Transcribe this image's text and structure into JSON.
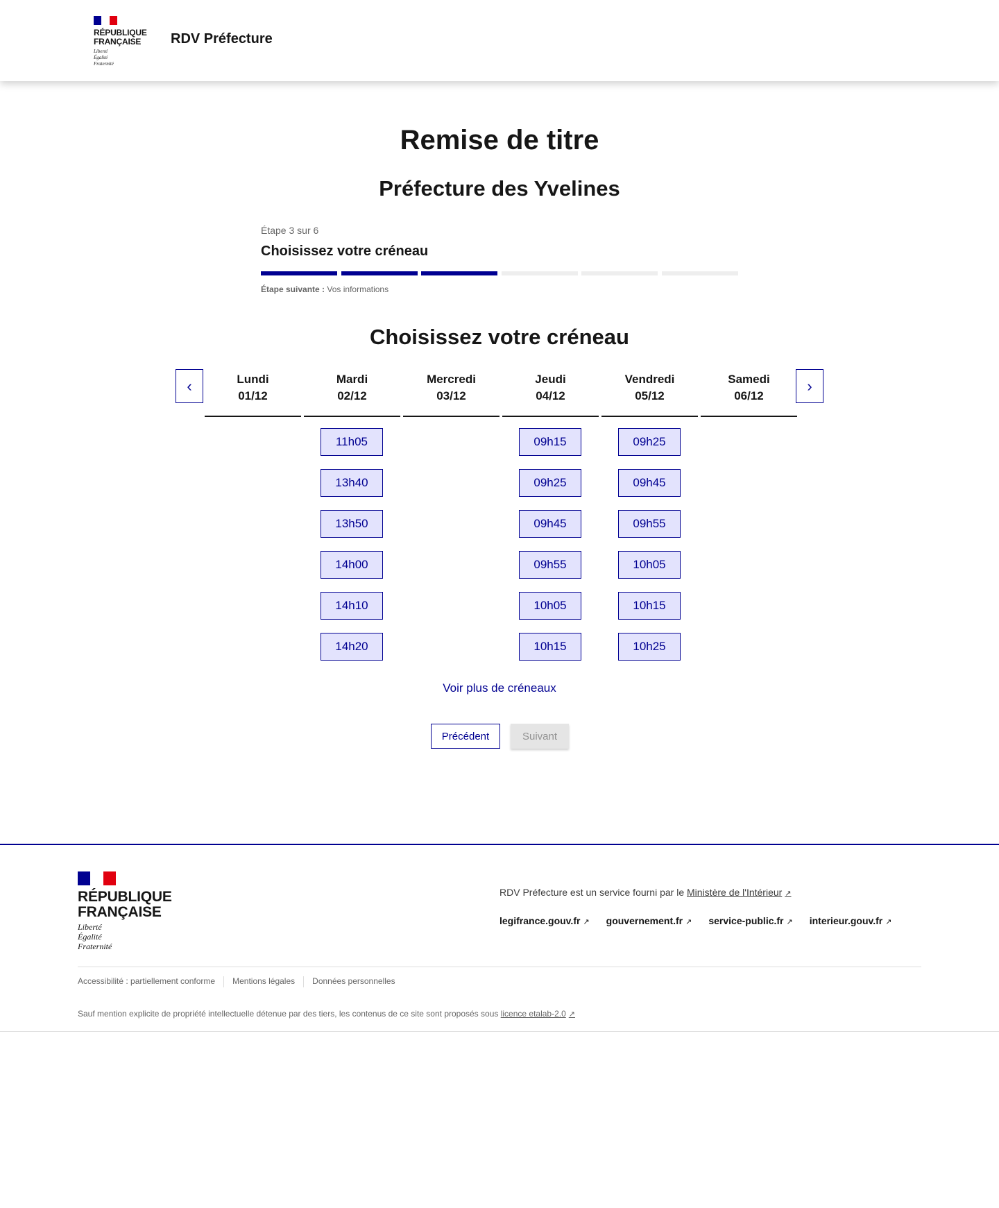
{
  "header": {
    "logo": {
      "line1": "RÉPUBLIQUE",
      "line2": "FRANÇAISE",
      "motto": [
        "Liberté",
        "Égalité",
        "Fraternité"
      ]
    },
    "service_name": "RDV Préfecture"
  },
  "page": {
    "title": "Remise de titre",
    "subtitle": "Préfecture des Yvelines"
  },
  "stepper": {
    "step_label": "Étape 3 sur 6",
    "current_title": "Choisissez votre créneau",
    "current_step": 3,
    "total_steps": 6,
    "next_label": "Étape suivante :",
    "next_value": "Vos informations"
  },
  "calendar": {
    "title": "Choisissez votre créneau",
    "prev_icon": "chevron-left-icon",
    "next_icon": "chevron-right-icon",
    "days": [
      {
        "name": "Lundi",
        "date": "01/12",
        "slots": []
      },
      {
        "name": "Mardi",
        "date": "02/12",
        "slots": [
          "11h05",
          "13h40",
          "13h50",
          "14h00",
          "14h10",
          "14h20"
        ]
      },
      {
        "name": "Mercredi",
        "date": "03/12",
        "slots": []
      },
      {
        "name": "Jeudi",
        "date": "04/12",
        "slots": [
          "09h15",
          "09h25",
          "09h45",
          "09h55",
          "10h05",
          "10h15"
        ]
      },
      {
        "name": "Vendredi",
        "date": "05/12",
        "slots": [
          "09h25",
          "09h45",
          "09h55",
          "10h05",
          "10h15",
          "10h25"
        ]
      },
      {
        "name": "Samedi",
        "date": "06/12",
        "slots": []
      }
    ],
    "more_link": "Voir plus de créneaux"
  },
  "actions": {
    "previous": "Précédent",
    "next": "Suivant"
  },
  "footer": {
    "logo": {
      "line1": "RÉPUBLIQUE",
      "line2": "FRANÇAISE",
      "motto": [
        "Liberté",
        "Égalité",
        "Fraternité"
      ]
    },
    "service_text": "RDV Préfecture est un service fourni par le",
    "ministry_link": "Ministère de l'Intérieur",
    "links": [
      "legifrance.gouv.fr",
      "gouvernement.fr",
      "service-public.fr",
      "interieur.gouv.fr"
    ],
    "bottom_links": [
      "Accessibilité : partiellement conforme",
      "Mentions légales",
      "Données personnelles"
    ],
    "license_text": "Sauf mention explicite de propriété intellectuelle détenue par des tiers, les contenus de ce site sont proposés sous",
    "license_link": "licence etalab-2.0"
  },
  "colors": {
    "primary": "#000091",
    "slot_bg": "#e3e3fd",
    "inactive_bar": "#eeeeee",
    "flag_blue": "#000091",
    "flag_red": "#e1000f"
  }
}
